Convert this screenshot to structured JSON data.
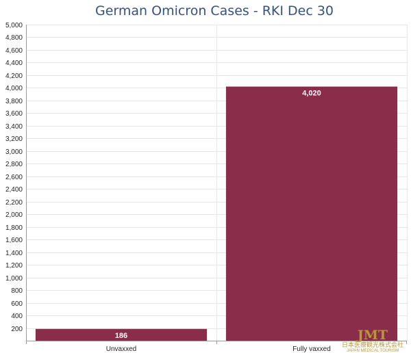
{
  "chart_data": {
    "type": "bar",
    "title": "German Omicron Cases - RKI Dec 30",
    "categories": [
      "Unvaxxed",
      "Fully vaxxed"
    ],
    "values": [
      186,
      4020
    ],
    "data_labels": [
      "186",
      "4,020"
    ],
    "ylim": [
      0,
      5000
    ],
    "yticks": [
      0,
      200,
      400,
      600,
      800,
      1000,
      1200,
      1400,
      1600,
      1800,
      2000,
      2200,
      2400,
      2600,
      2800,
      3000,
      3200,
      3400,
      3600,
      3800,
      4000,
      4200,
      4400,
      4600,
      4800,
      5000
    ],
    "ytick_labels": [
      "",
      "200",
      "400",
      "600",
      "800",
      "1,000",
      "1,200",
      "1,400",
      "1,600",
      "1,800",
      "2,000",
      "2,200",
      "2,400",
      "2,600",
      "2,800",
      "3,000",
      "3,200",
      "3,400",
      "3,600",
      "3,800",
      "4,000",
      "4,200",
      "4,400",
      "4,600",
      "4,800",
      "5,000"
    ],
    "grid": true,
    "legend": "none"
  },
  "colors": {
    "bar": "#8a2d4a",
    "title": "#35527f",
    "grid": "#e6e6e6",
    "axis": "#999999",
    "watermark": "#b8963c"
  },
  "watermark": {
    "logo_text": "JMT",
    "line1": "日本医療観光株式会社",
    "line2": "JAPAN MEDICAL TOURISM"
  }
}
